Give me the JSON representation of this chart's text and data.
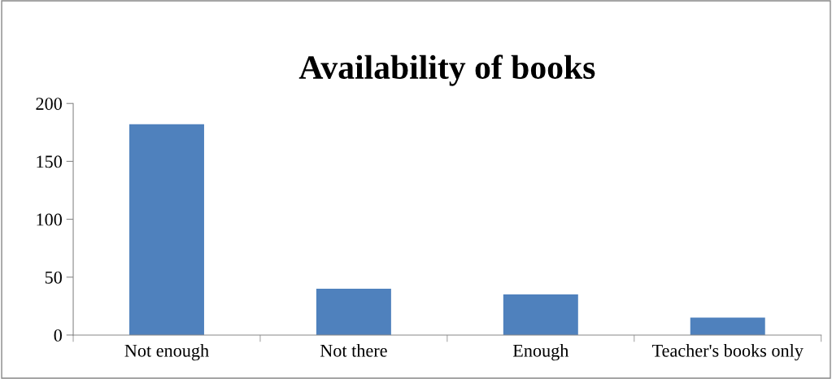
{
  "chart_data": {
    "type": "bar",
    "title": "Availability of books",
    "categories": [
      "Not enough",
      "Not there",
      "Enough",
      "Teacher's books only"
    ],
    "values": [
      182,
      40,
      35,
      15
    ],
    "color": "#4f81bd",
    "ylim": [
      0,
      200
    ],
    "yticks": [
      0,
      50,
      100,
      150,
      200
    ],
    "grid": false,
    "legend": false
  }
}
